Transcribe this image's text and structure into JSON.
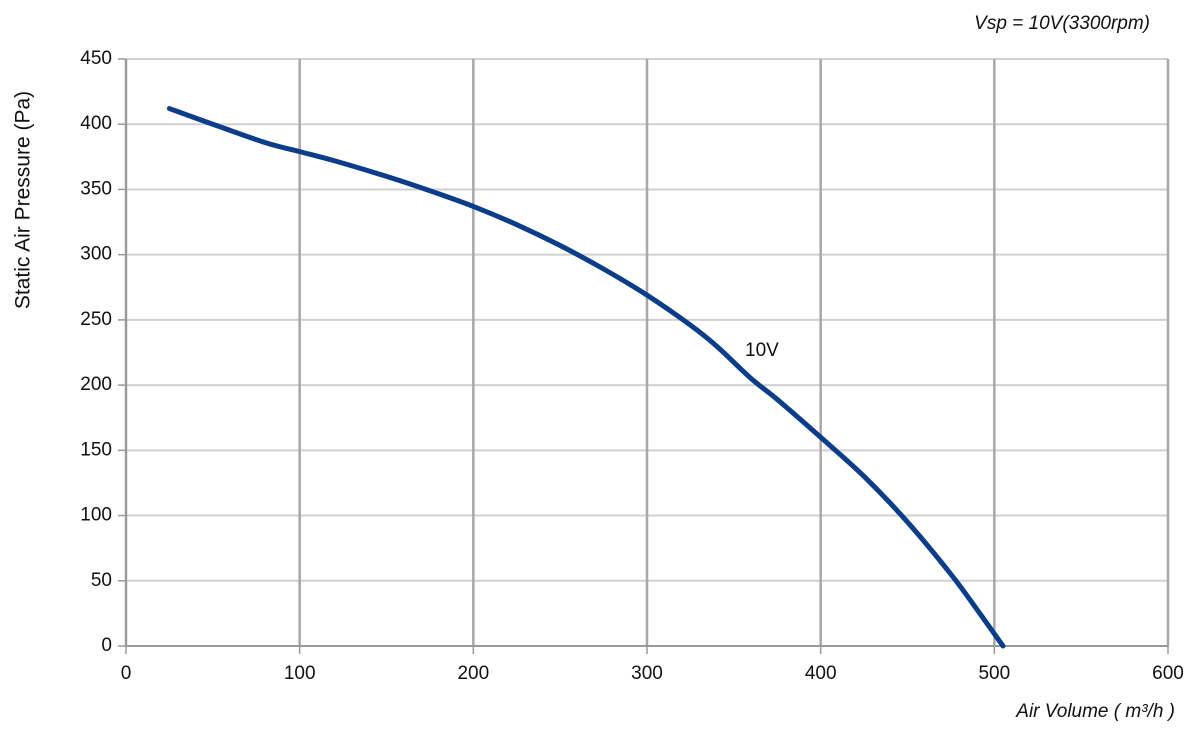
{
  "chart_data": {
    "type": "line",
    "subtitle": "Vsp = 10V(3300rpm)",
    "x_label": "Air Volume ( m³/h )",
    "y_label": "Static Air Pressure  (Pa)",
    "annotation": "10V",
    "xlim": [
      0,
      600
    ],
    "xticks": [
      0,
      100,
      200,
      300,
      400,
      500,
      600
    ],
    "ylim": [
      0,
      450
    ],
    "yticks": [
      0,
      50,
      100,
      150,
      200,
      250,
      300,
      350,
      400,
      450
    ],
    "grid": true,
    "series": [
      {
        "name": "10V",
        "color": "#0b3d8a",
        "x": [
          25,
          50,
          80,
          100,
          120,
          150,
          175,
          200,
          225,
          250,
          275,
          300,
          325,
          340,
          360,
          375,
          400,
          425,
          450,
          475,
          490,
          505
        ],
        "values": [
          412,
          400,
          386,
          379,
          372,
          360,
          349,
          337,
          323,
          307,
          289,
          269,
          246,
          230,
          205,
          189,
          160,
          130,
          95,
          55,
          28,
          0
        ]
      }
    ]
  }
}
